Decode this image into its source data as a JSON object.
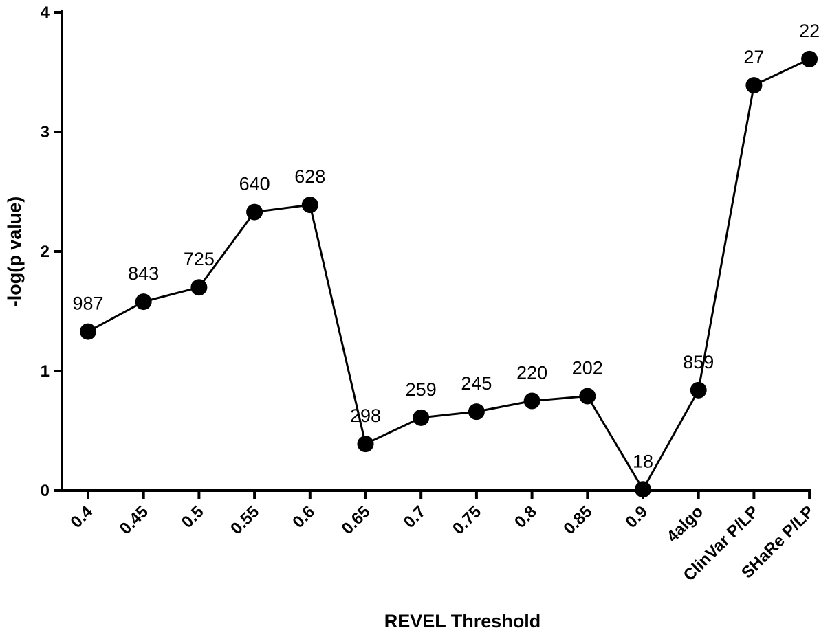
{
  "chart_data": {
    "type": "line",
    "title": "",
    "xlabel": "REVEL Threshold",
    "ylabel": "-log(p value)",
    "ylim": [
      0,
      4
    ],
    "yticks": [
      "0",
      "1",
      "2",
      "3",
      "4"
    ],
    "categories": [
      "0.4",
      "0.45",
      "0.5",
      "0.55",
      "0.6",
      "0.65",
      "0.7",
      "0.75",
      "0.8",
      "0.85",
      "0.9",
      "4algo",
      "ClinVar P/LP",
      "SHaRe P/LP"
    ],
    "series": [
      {
        "values": [
          1.33,
          1.58,
          1.7,
          2.33,
          2.39,
          0.39,
          0.61,
          0.66,
          0.75,
          0.79,
          0.01,
          0.84,
          3.39,
          3.61
        ],
        "labels": [
          "987",
          "843",
          "725",
          "640",
          "628",
          "298",
          "259",
          "245",
          "220",
          "202",
          "18",
          "859",
          "27",
          "22"
        ]
      }
    ],
    "grid": false,
    "legend": "none",
    "color": "#000000"
  }
}
